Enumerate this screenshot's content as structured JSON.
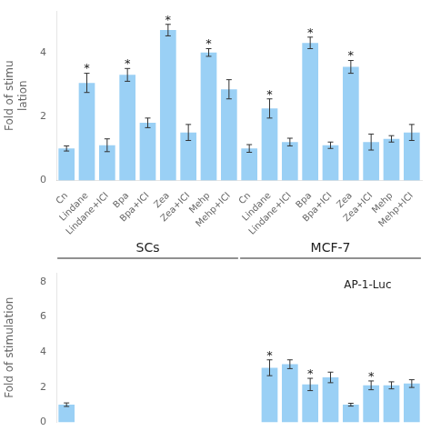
{
  "chart_data": [
    {
      "type": "bar",
      "y_label": "Fold of stimu\nlation",
      "categories": [
        "Cn",
        "Lindane",
        "Lindane+ICI",
        "Bpa",
        "Bpa+ICI",
        "Zea",
        "Zea+ICI",
        "Mehp",
        "Mehp+ICI",
        "Cn",
        "Lindane",
        "Lindane+ICI",
        "Bpa",
        "Bpa+ICI",
        "Zea",
        "Zea+ICI",
        "Mehp",
        "Mehp+ICI"
      ],
      "groups": [
        {
          "name": "SCs",
          "categories": [
            "Cn",
            "Lindane",
            "Lindane+ICI",
            "Bpa",
            "Bpa+ICI",
            "Zea",
            "Zea+ICI",
            "Mehp",
            "Mehp+ICI"
          ]
        },
        {
          "name": "MCF-7",
          "categories": [
            "Cn",
            "Lindane",
            "Lindane+ICI",
            "Bpa",
            "Bpa+ICI",
            "Zea",
            "Zea+ICI",
            "Mehp",
            "Mehp+ICI"
          ]
        }
      ],
      "values": [
        1.0,
        3.05,
        1.1,
        3.3,
        1.8,
        4.7,
        1.5,
        4.0,
        2.85,
        1.0,
        2.25,
        1.2,
        4.3,
        1.1,
        3.55,
        1.2,
        1.3,
        1.5
      ],
      "errors": [
        0.08,
        0.3,
        0.2,
        0.2,
        0.15,
        0.18,
        0.25,
        0.12,
        0.3,
        0.12,
        0.3,
        0.12,
        0.18,
        0.1,
        0.2,
        0.25,
        0.1,
        0.25
      ],
      "significance": [
        null,
        "*",
        null,
        "*",
        null,
        "*",
        null,
        "*",
        null,
        null,
        "*",
        null,
        "*",
        null,
        "*",
        null,
        null,
        null
      ],
      "ylim": [
        0,
        5.3
      ],
      "yticks": [
        0,
        2,
        4
      ],
      "grid": false
    },
    {
      "type": "bar",
      "y_label": "Fold of stimulation",
      "annotation": "AP-1-Luc",
      "categories": [
        null,
        null,
        null,
        null,
        null,
        null,
        null,
        null,
        null,
        null,
        null,
        null,
        null,
        null,
        null,
        null,
        null,
        null
      ],
      "values": [
        1.0,
        null,
        null,
        null,
        null,
        null,
        null,
        null,
        null,
        null,
        3.1,
        3.3,
        2.15,
        2.55,
        1.0,
        2.1,
        2.1,
        2.2
      ],
      "errors": [
        0.1,
        null,
        null,
        null,
        null,
        null,
        null,
        null,
        null,
        null,
        0.45,
        0.25,
        0.35,
        0.3,
        0.08,
        0.25,
        0.2,
        0.22
      ],
      "significance": [
        null,
        null,
        null,
        null,
        null,
        null,
        null,
        null,
        null,
        null,
        "*",
        null,
        "*",
        null,
        null,
        "*",
        null,
        null
      ],
      "ylim": [
        0,
        8.5
      ],
      "yticks": [
        0,
        2,
        4,
        6,
        8
      ],
      "grid": false,
      "tick_labels": "y"
    }
  ]
}
